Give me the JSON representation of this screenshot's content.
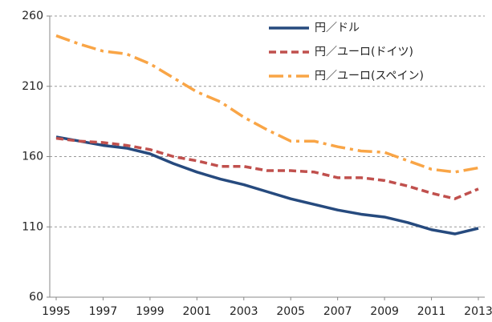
{
  "chart_data": {
    "type": "line",
    "x": [
      1995,
      1996,
      1997,
      1998,
      1999,
      2000,
      2001,
      2002,
      2003,
      2004,
      2005,
      2006,
      2007,
      2008,
      2009,
      2010,
      2011,
      2012,
      2013
    ],
    "xlim": [
      1995,
      2013
    ],
    "xticks": [
      1995,
      1997,
      1999,
      2001,
      2003,
      2005,
      2007,
      2009,
      2011,
      2013
    ],
    "ylim": [
      60,
      260
    ],
    "yticks": [
      60,
      110,
      160,
      210,
      260
    ],
    "grid": true,
    "legend": "top-right",
    "series": [
      {
        "name": "円／ドル",
        "color": "#264a7e",
        "style": "solid",
        "values": [
          174,
          171,
          168,
          166,
          162,
          155,
          149,
          144,
          140,
          135,
          130,
          126,
          122,
          119,
          117,
          113,
          108,
          105,
          109
        ]
      },
      {
        "name": "円／ユーロ(ドイツ)",
        "color": "#c0504d",
        "style": "dashed",
        "values": [
          173,
          171,
          170,
          168,
          165,
          160,
          157,
          153,
          153,
          150,
          150,
          149,
          145,
          145,
          143,
          139,
          134,
          130,
          137
        ]
      },
      {
        "name": "円／ユーロ(スペイン)",
        "color": "#f9a546",
        "style": "dashdot",
        "values": [
          246,
          240,
          235,
          233,
          226,
          216,
          206,
          199,
          188,
          179,
          171,
          171,
          167,
          164,
          163,
          157,
          151,
          149,
          152
        ]
      }
    ]
  }
}
